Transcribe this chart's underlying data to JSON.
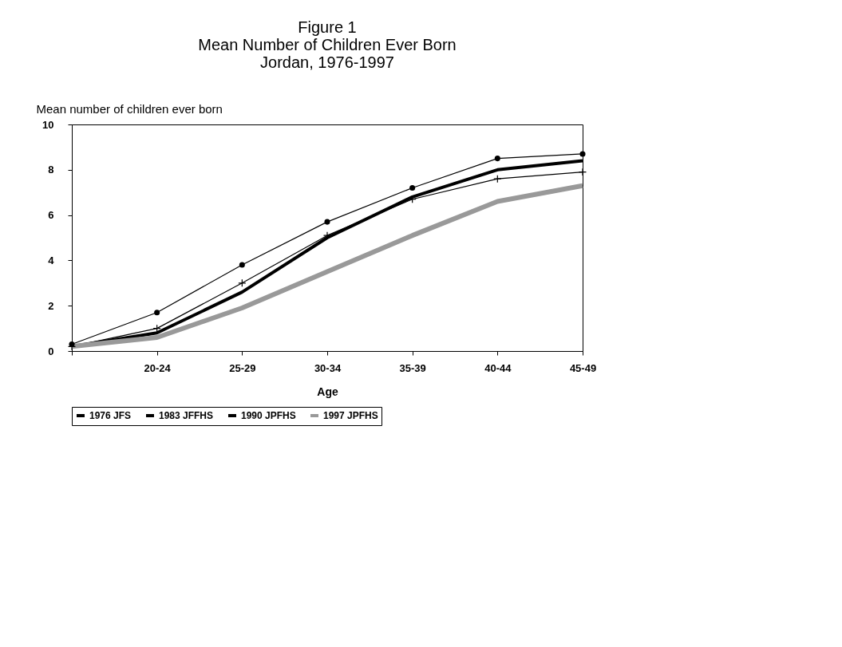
{
  "chart_data": {
    "type": "line",
    "title": "Figure 1",
    "subtitle": "Mean Number of Children Ever Born\nJordan, 1976-1997",
    "xlabel": "Age",
    "ylabel": "Mean number of children ever born",
    "categories": [
      null,
      "20-24",
      "25-29",
      "30-34",
      "35-39",
      "40-44",
      "45-49"
    ],
    "ylim": [
      0,
      10
    ],
    "yticks": [
      0,
      2,
      4,
      6,
      8,
      10
    ],
    "grid": false,
    "legend": "bottom",
    "series": [
      {
        "name": "1976 JFS",
        "color": "#000000",
        "marker": "circle",
        "values": [
          0.3,
          1.7,
          3.8,
          5.7,
          7.2,
          8.5,
          8.7
        ]
      },
      {
        "name": "1983 JFFHS",
        "color": "#000000",
        "marker": "cross",
        "values": [
          0.2,
          1.0,
          3.0,
          5.1,
          6.7,
          7.6,
          7.9
        ]
      },
      {
        "name": "1990 JPFHS",
        "color": "#000000",
        "marker": "none",
        "values": [
          0.2,
          0.8,
          2.6,
          5.0,
          6.8,
          8.0,
          8.4
        ]
      },
      {
        "name": "1997 JPFHS",
        "color": "#999999",
        "marker": "none",
        "values": [
          0.2,
          0.6,
          1.9,
          3.5,
          5.1,
          6.6,
          7.3
        ]
      }
    ]
  }
}
